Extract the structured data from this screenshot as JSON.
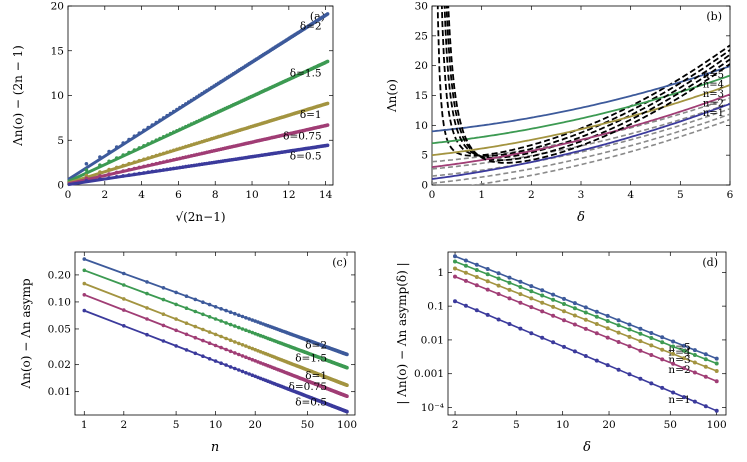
{
  "chart_data": [
    {
      "panel": "(a)",
      "type": "line",
      "ylabel": "Λn(o) − (2n − 1)",
      "xlabel": "√(2n−1)",
      "xlim": [
        0,
        14.4
      ],
      "ylim": [
        0,
        20
      ],
      "xticks": [
        0,
        2,
        4,
        6,
        8,
        10,
        12,
        14
      ],
      "yticks": [
        0,
        5,
        10,
        15,
        20
      ],
      "series": [
        {
          "name": "δ=2",
          "color": "#3d5a9b",
          "slope": 1.31,
          "intercept": 0.6
        },
        {
          "name": "δ=1.5",
          "color": "#3c9a52",
          "slope": 0.95,
          "intercept": 0.38
        },
        {
          "name": "δ=1",
          "color": "#a39440",
          "slope": 0.63,
          "intercept": 0.22
        },
        {
          "name": "δ=0.75",
          "color": "#a03d75",
          "slope": 0.465,
          "intercept": 0.12
        },
        {
          "name": "δ=0.5",
          "color": "#3b3a9c",
          "slope": 0.31,
          "intercept": 0.05
        }
      ]
    },
    {
      "panel": "(b)",
      "type": "line",
      "ylabel": "Λn(o)",
      "xlabel": "δ",
      "xlim": [
        0,
        6
      ],
      "ylim": [
        0,
        30
      ],
      "xticks": [
        0,
        1,
        2,
        3,
        4,
        5,
        6
      ],
      "yticks": [
        0,
        5,
        10,
        15,
        20,
        25,
        30
      ],
      "series": [
        {
          "name": "n=5",
          "color": "#3d5a9b",
          "base": 9
        },
        {
          "name": "n=4",
          "color": "#3c9a52",
          "base": 7
        },
        {
          "name": "n=3",
          "color": "#a39440",
          "base": 5
        },
        {
          "name": "n=2",
          "color": "#a03d75",
          "base": 3
        },
        {
          "name": "n=1",
          "color": "#3b3a9c",
          "base": 1
        }
      ]
    },
    {
      "panel": "(c)",
      "type": "line",
      "ylabel": "Λn(o) − Λn asymp",
      "xlabel": "n",
      "xscale": "log",
      "yscale": "log",
      "xlim": [
        0.85,
        115
      ],
      "ylim": [
        0.0055,
        0.36
      ],
      "xticks": [
        1,
        2,
        5,
        10,
        20,
        50,
        100
      ],
      "yticks": [
        0.01,
        0.02,
        0.05,
        0.1,
        0.2
      ],
      "ytick_labels": [
        "0.01",
        "0.02",
        "0.05",
        "0.10",
        "0.20"
      ],
      "series": [
        {
          "name": "δ=2",
          "color": "#3d5a9b",
          "v1": 0.3,
          "v100": 0.026
        },
        {
          "name": "δ=1.5",
          "color": "#3c9a52",
          "v1": 0.225,
          "v100": 0.0185
        },
        {
          "name": "δ=1",
          "color": "#a39440",
          "v1": 0.16,
          "v100": 0.0118
        },
        {
          "name": "δ=0.75",
          "color": "#a03d75",
          "v1": 0.12,
          "v100": 0.0089
        },
        {
          "name": "δ=0.5",
          "color": "#3b3a9c",
          "v1": 0.08,
          "v100": 0.006
        }
      ]
    },
    {
      "panel": "(d)",
      "type": "line",
      "ylabel": "| Λn(o) − Λn asymp(δ) |",
      "xlabel": "δ",
      "xscale": "log",
      "yscale": "log",
      "xlim": [
        1.8,
        115
      ],
      "ylim": [
        6e-05,
        4
      ],
      "xticks": [
        2,
        5,
        10,
        20,
        50,
        100
      ],
      "yticks": [
        0.0001,
        0.001,
        0.01,
        0.1,
        1
      ],
      "ytick_labels": [
        "10⁻⁴",
        "0.001",
        "0.01",
        "0.1",
        "1"
      ],
      "series": [
        {
          "name": "n=5",
          "color": "#3d5a9b",
          "v2": 3.0,
          "v100": 0.0028
        },
        {
          "name": "n=4",
          "color": "#3c9a52",
          "v2": 2.1,
          "v100": 0.002
        },
        {
          "name": "n=3",
          "color": "#a39440",
          "v2": 1.3,
          "v100": 0.0012
        },
        {
          "name": "n=2",
          "color": "#a03d75",
          "v2": 0.75,
          "v100": 0.0006
        },
        {
          "name": "n=1",
          "color": "#3b3a9c",
          "v2": 0.14,
          "v100": 8e-05
        }
      ]
    }
  ]
}
